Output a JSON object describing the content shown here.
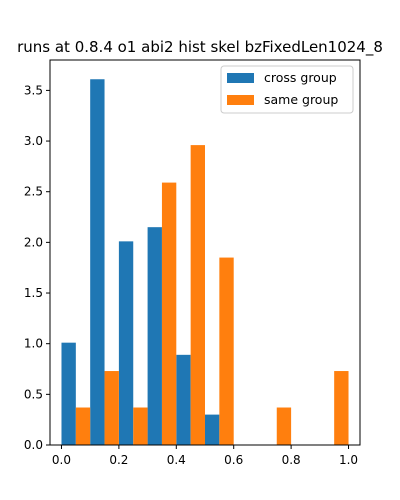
{
  "chart_data": {
    "type": "bar",
    "title": "runs at 0.8.4 o1 abi2 hist skel bzFixedLen1024_8",
    "xlabel": "",
    "ylabel": "",
    "xlim": [
      -0.04,
      1.04
    ],
    "ylim": [
      0,
      3.8
    ],
    "bin_edges": [
      0.0,
      0.1,
      0.2,
      0.3,
      0.4,
      0.5,
      0.6,
      0.7,
      0.8,
      0.9,
      1.0
    ],
    "x_ticks": [
      0.0,
      0.2,
      0.4,
      0.6,
      0.8,
      1.0
    ],
    "x_tick_labels": [
      "0.0",
      "0.2",
      "0.4",
      "0.6",
      "0.8",
      "1.0"
    ],
    "y_ticks": [
      0.0,
      0.5,
      1.0,
      1.5,
      2.0,
      2.5,
      3.0,
      3.5
    ],
    "y_tick_labels": [
      "0.0",
      "0.5",
      "1.0",
      "1.5",
      "2.0",
      "2.5",
      "3.0",
      "3.5"
    ],
    "legend_position": "top-right",
    "grid": false,
    "series": [
      {
        "name": "cross group",
        "color": "#1f77b4",
        "values": [
          1.01,
          3.61,
          2.01,
          2.15,
          0.89,
          0.3,
          0,
          0,
          0,
          0
        ]
      },
      {
        "name": "same group",
        "color": "#ff7f0e",
        "values": [
          0.37,
          0.73,
          0.37,
          2.59,
          2.96,
          1.85,
          0,
          0.37,
          0,
          0.73
        ]
      }
    ]
  }
}
